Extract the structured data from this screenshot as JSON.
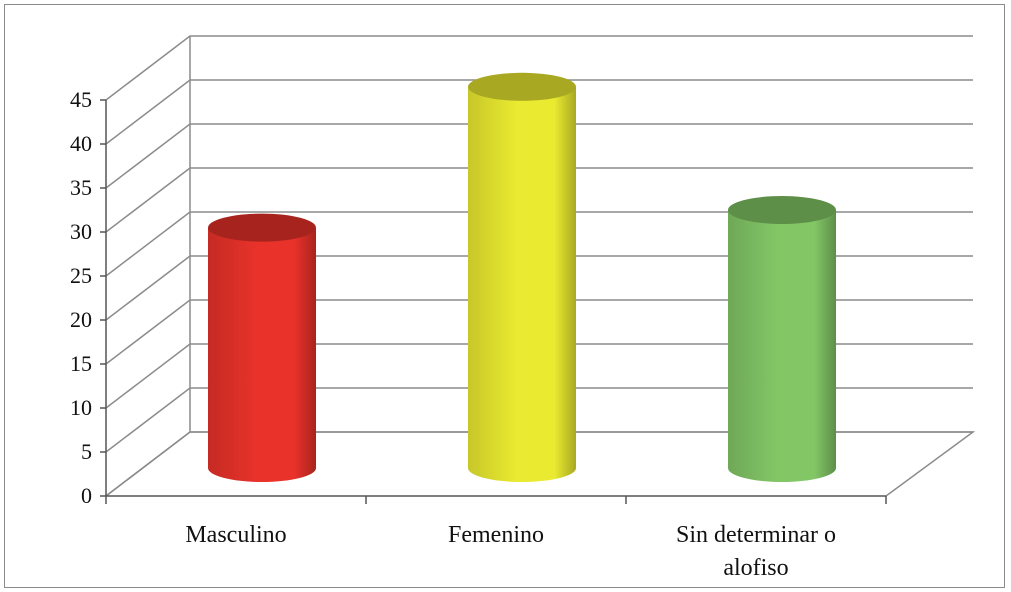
{
  "chart_data": {
    "type": "bar",
    "style": "3d-cylinder",
    "categories": [
      "Masculino",
      "Femenino",
      "Sin determinar o alofiso"
    ],
    "category_label_lines": [
      [
        "Masculino"
      ],
      [
        "Femenino"
      ],
      [
        "Sin determinar o",
        "alofiso"
      ]
    ],
    "values": [
      28,
      44,
      30
    ],
    "bar_colors": [
      "#e8322a",
      "#eaea30",
      "#82c666"
    ],
    "title": "",
    "xlabel": "",
    "ylabel": "",
    "ylim": [
      0,
      45
    ],
    "y_ticks": [
      0,
      5,
      10,
      15,
      20,
      25,
      30,
      35,
      40,
      45
    ],
    "grid": true,
    "legend": "none"
  }
}
